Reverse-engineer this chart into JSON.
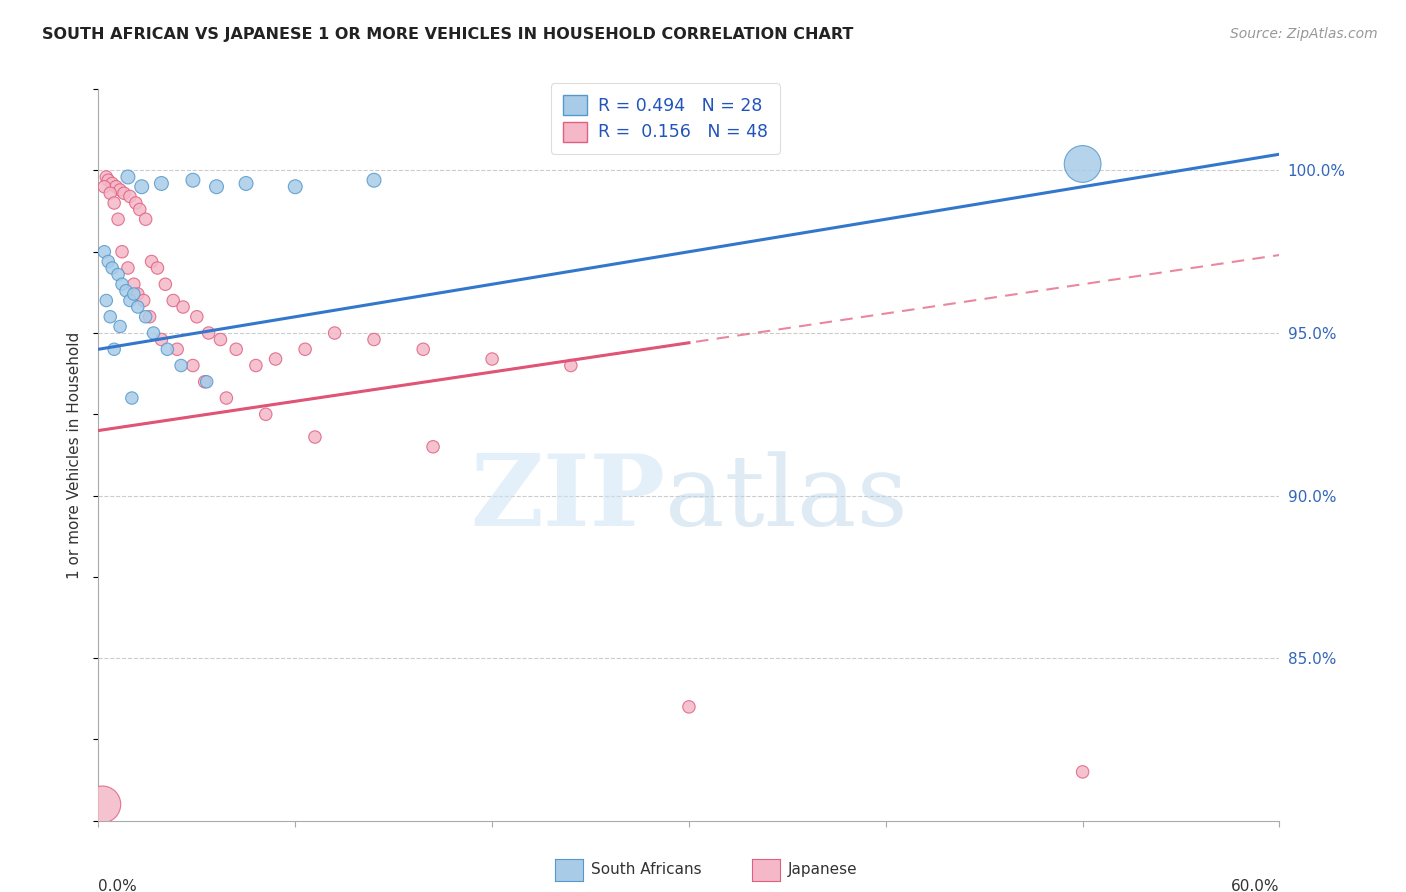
{
  "title": "SOUTH AFRICAN VS JAPANESE 1 OR MORE VEHICLES IN HOUSEHOLD CORRELATION CHART",
  "source": "Source: ZipAtlas.com",
  "ylabel": "1 or more Vehicles in Household",
  "ytick_values": [
    100.0,
    95.0,
    90.0,
    85.0
  ],
  "xmin": 0.0,
  "xmax": 60.0,
  "ymin": 80.0,
  "ymax": 102.5,
  "blue_r": "0.494",
  "blue_n": "28",
  "pink_r": "0.156",
  "pink_n": "48",
  "blue_color": "#a8cce8",
  "pink_color": "#f4b8c8",
  "blue_edge_color": "#5599cc",
  "pink_edge_color": "#e06080",
  "blue_line_color": "#3377cc",
  "pink_line_color": "#e05575",
  "legend_label_blue": "South Africans",
  "legend_label_pink": "Japanese",
  "blue_line_x0": 0.0,
  "blue_line_y0": 94.5,
  "blue_line_x1": 60.0,
  "blue_line_y1": 100.5,
  "pink_solid_x0": 0.0,
  "pink_solid_y0": 92.0,
  "pink_solid_x1": 30.0,
  "pink_solid_y1": 94.7,
  "pink_dash_x0": 0.0,
  "pink_dash_y0": 92.0,
  "pink_dash_x1": 60.0,
  "pink_dash_y1": 97.4,
  "blue_scatter_x": [
    1.5,
    2.2,
    3.2,
    4.8,
    6.0,
    7.5,
    10.0,
    14.0,
    0.3,
    0.5,
    0.7,
    1.0,
    1.2,
    1.4,
    1.6,
    1.8,
    2.0,
    2.4,
    2.8,
    3.5,
    4.2,
    5.5,
    0.4,
    0.6,
    0.8,
    1.1,
    1.7,
    50.0
  ],
  "blue_scatter_y": [
    99.8,
    99.5,
    99.6,
    99.7,
    99.5,
    99.6,
    99.5,
    99.7,
    97.5,
    97.2,
    97.0,
    96.8,
    96.5,
    96.3,
    96.0,
    96.2,
    95.8,
    95.5,
    95.0,
    94.5,
    94.0,
    93.5,
    96.0,
    95.5,
    94.5,
    95.2,
    93.0,
    100.2
  ],
  "blue_scatter_size": [
    100,
    100,
    100,
    100,
    100,
    100,
    100,
    100,
    80,
    80,
    80,
    80,
    80,
    80,
    80,
    80,
    80,
    80,
    80,
    80,
    80,
    80,
    80,
    80,
    80,
    80,
    80,
    700
  ],
  "pink_scatter_x": [
    0.2,
    0.4,
    0.5,
    0.7,
    0.9,
    1.1,
    1.3,
    1.6,
    1.9,
    2.1,
    2.4,
    2.7,
    3.0,
    3.4,
    3.8,
    4.3,
    5.0,
    5.6,
    6.2,
    7.0,
    8.0,
    9.0,
    10.5,
    12.0,
    14.0,
    16.5,
    20.0,
    24.0,
    0.3,
    0.6,
    0.8,
    1.0,
    1.2,
    1.5,
    1.8,
    2.0,
    2.3,
    2.6,
    3.2,
    4.0,
    4.8,
    5.4,
    6.5,
    8.5,
    11.0,
    17.0,
    30.0,
    50.0
  ],
  "pink_scatter_y": [
    80.5,
    99.8,
    99.7,
    99.6,
    99.5,
    99.4,
    99.3,
    99.2,
    99.0,
    98.8,
    98.5,
    97.2,
    97.0,
    96.5,
    96.0,
    95.8,
    95.5,
    95.0,
    94.8,
    94.5,
    94.0,
    94.2,
    94.5,
    95.0,
    94.8,
    94.5,
    94.2,
    94.0,
    99.5,
    99.3,
    99.0,
    98.5,
    97.5,
    97.0,
    96.5,
    96.2,
    96.0,
    95.5,
    94.8,
    94.5,
    94.0,
    93.5,
    93.0,
    92.5,
    91.8,
    91.5,
    83.5,
    81.5
  ],
  "pink_scatter_size": [
    700,
    80,
    80,
    80,
    80,
    80,
    80,
    80,
    80,
    80,
    80,
    80,
    80,
    80,
    80,
    80,
    80,
    80,
    80,
    80,
    80,
    80,
    80,
    80,
    80,
    80,
    80,
    80,
    80,
    80,
    80,
    80,
    80,
    80,
    80,
    80,
    80,
    80,
    80,
    80,
    80,
    80,
    80,
    80,
    80,
    80,
    80,
    80
  ]
}
